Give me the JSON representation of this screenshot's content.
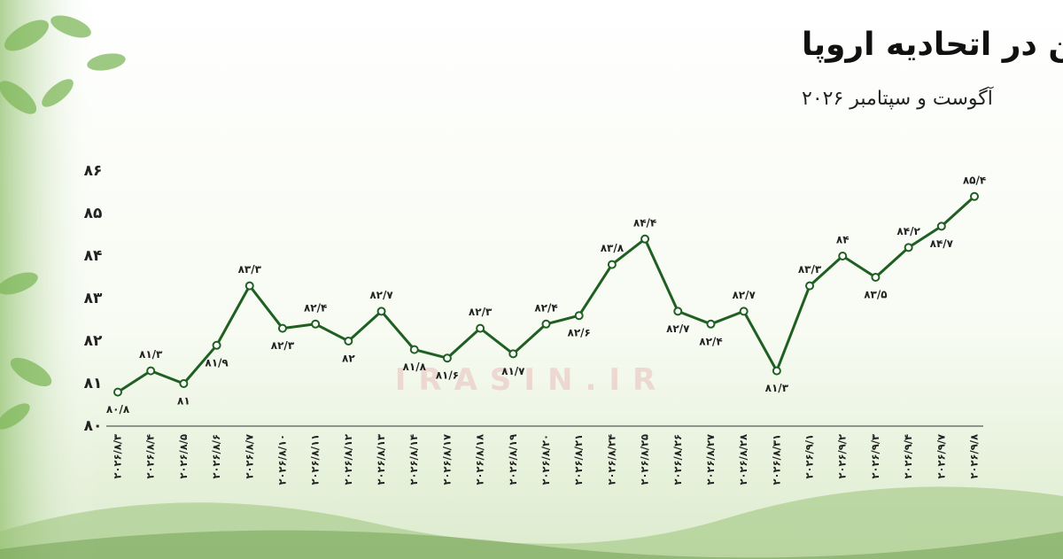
{
  "chart_data": {
    "type": "line",
    "title": "قیمت کربن در اتحادیه اروپا",
    "subtitle": "آگوست و سپتامبر ۲۰۲۶",
    "watermark": "IRASIN.IR",
    "categories": [
      "۲۰۲۶/۸/۳",
      "۲۰۲۶/۸/۴",
      "۲۰۲۶/۸/۵",
      "۲۰۲۶/۸/۶",
      "۲۰۲۶/۸/۷",
      "۲۰۲۶/۸/۱۰",
      "۲۰۲۶/۸/۱۱",
      "۲۰۲۶/۸/۱۲",
      "۲۰۲۶/۸/۱۳",
      "۲۰۲۶/۸/۱۴",
      "۲۰۲۶/۸/۱۷",
      "۲۰۲۶/۸/۱۸",
      "۲۰۲۶/۸/۱۹",
      "۲۰۲۶/۸/۲۰",
      "۲۰۲۶/۸/۲۱",
      "۲۰۲۶/۸/۲۴",
      "۲۰۲۶/۸/۲۵",
      "۲۰۲۶/۸/۲۶",
      "۲۰۲۶/۸/۲۷",
      "۲۰۲۶/۸/۲۸",
      "۲۰۲۶/۸/۳۱",
      "۲۰۲۶/۹/۱",
      "۲۰۲۶/۹/۲",
      "۲۰۲۶/۹/۳",
      "۲۰۲۶/۹/۴",
      "۲۰۲۶/۹/۷",
      "۲۰۲۶/۹/۸"
    ],
    "values": [
      80.8,
      81.3,
      81,
      81.9,
      83.3,
      82.3,
      82.4,
      82,
      82.7,
      81.8,
      81.6,
      82.3,
      81.7,
      82.4,
      82.6,
      83.8,
      84.4,
      82.7,
      82.4,
      82.7,
      81.3,
      83.3,
      84,
      83.5,
      84.2,
      84.7,
      85.4
    ],
    "value_labels": [
      "۸۰/۸",
      "۸۱/۳",
      "۸۱",
      "۸۱/۹",
      "۸۳/۳",
      "۸۲/۳",
      "۸۲/۴",
      "۸۲",
      "۸۲/۷",
      "۸۱/۸",
      "۸۱/۶",
      "۸۲/۳",
      "۸۱/۷",
      "۸۲/۴",
      "۸۲/۶",
      "۸۳/۸",
      "۸۴/۴",
      "۸۲/۷",
      "۸۲/۴",
      "۸۲/۷",
      "۸۱/۳",
      "۸۳/۳",
      "۸۴",
      "۸۳/۵",
      "۸۴/۲",
      "۸۴/۷",
      "۸۵/۴"
    ],
    "color": "#1f5f22",
    "ylim": [
      80,
      86
    ],
    "yticks": [
      {
        "value": 80,
        "label": "۸۰"
      },
      {
        "value": 81,
        "label": "۸۱"
      },
      {
        "value": 82,
        "label": "۸۲"
      },
      {
        "value": 83,
        "label": "۸۳"
      },
      {
        "value": 84,
        "label": "۸۴"
      },
      {
        "value": 85,
        "label": "۸۵"
      },
      {
        "value": 86,
        "label": "۸۶"
      }
    ],
    "grid": false
  }
}
